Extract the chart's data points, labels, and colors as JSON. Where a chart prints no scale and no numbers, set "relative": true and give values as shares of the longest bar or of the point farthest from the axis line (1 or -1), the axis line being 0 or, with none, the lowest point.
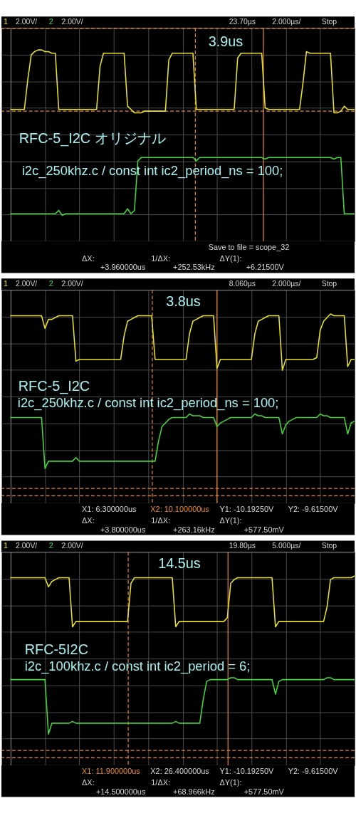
{
  "chart_data": [
    {
      "type": "line",
      "title": "RFC-5_I2C オリジナル",
      "subtitle": "i2c_250khz.c / const int ic2_period_ns = 100;",
      "relative": true,
      "categories": [
        null,
        null,
        null,
        null,
        null,
        null,
        null,
        null,
        null,
        null,
        null,
        null,
        null,
        null,
        null,
        null,
        null,
        null,
        null,
        null,
        null,
        null,
        null,
        null,
        null,
        null,
        null,
        null,
        null,
        null,
        null,
        null,
        null,
        null,
        null,
        null,
        null,
        null,
        null,
        null,
        null,
        null,
        null,
        null,
        null,
        null,
        null,
        null,
        null,
        null,
        null,
        null,
        null,
        null,
        null,
        null,
        null,
        null,
        null,
        null,
        null,
        null,
        null,
        null,
        null,
        null,
        null,
        null,
        null,
        null,
        null,
        null,
        null,
        null,
        null,
        null,
        null,
        null,
        null,
        null,
        null,
        null,
        null,
        null,
        null,
        null,
        null,
        null,
        null,
        null,
        null,
        null,
        null,
        null,
        null,
        null,
        null,
        null,
        null,
        null,
        null
      ],
      "tick_labels": false,
      "grid": true,
      "line_style": "solid",
      "series": [
        {
          "name": "1",
          "color": "#e6e02c",
          "values": [
            0.64,
            0.64,
            0.64,
            0.64,
            0.64,
            0.82,
            0.97,
            0.99,
            1.0,
            1.0,
            0.99,
            0.99,
            0.98,
            0.98,
            0.64,
            0.64,
            0.64,
            0.64,
            0.64,
            0.64,
            0.64,
            0.64,
            0.64,
            0.64,
            0.64,
            0.64,
            0.9,
            0.98,
            0.98,
            0.98,
            0.98,
            0.98,
            0.98,
            0.98,
            0.66,
            0.64,
            0.62,
            0.62,
            0.62,
            0.63,
            0.63,
            0.63,
            0.63,
            0.63,
            0.63,
            0.63,
            0.94,
            0.98,
            0.98,
            0.98,
            0.98,
            0.98,
            0.98,
            0.98,
            0.64,
            0.64,
            0.64,
            0.64,
            0.64,
            0.64,
            0.64,
            0.64,
            0.64,
            0.64,
            0.64,
            0.64,
            0.95,
            0.98,
            0.98,
            0.98,
            0.98,
            0.98,
            0.98,
            0.98,
            0.65,
            0.64,
            0.64,
            0.64,
            0.64,
            0.64,
            0.64,
            0.64,
            0.64,
            0.64,
            0.64,
            0.8,
            0.99,
            0.98,
            0.98,
            0.98,
            0.98,
            0.98,
            0.98,
            0.98,
            0.62,
            0.62,
            0.63,
            0.66,
            0.64,
            0.64,
            0.64
          ]
        },
        {
          "name": "2",
          "color": "#44d43a",
          "values": [
            0.01,
            0.01,
            0.01,
            0.01,
            0.01,
            0.01,
            0.01,
            0.01,
            0.01,
            0.01,
            0.01,
            0.01,
            0.01,
            0.01,
            0.03,
            0.0,
            0.01,
            0.01,
            0.01,
            0.01,
            0.01,
            0.01,
            0.01,
            0.01,
            0.01,
            0.01,
            0.01,
            0.01,
            0.01,
            0.01,
            0.01,
            0.01,
            0.01,
            0.01,
            0.04,
            0.01,
            0.03,
            0.33,
            0.35,
            0.35,
            0.35,
            0.35,
            0.35,
            0.35,
            0.35,
            0.35,
            0.35,
            0.35,
            0.35,
            0.35,
            0.35,
            0.35,
            0.35,
            0.35,
            0.33,
            0.35,
            0.35,
            0.35,
            0.35,
            0.35,
            0.35,
            0.35,
            0.35,
            0.35,
            0.35,
            0.35,
            0.35,
            0.35,
            0.35,
            0.35,
            0.35,
            0.35,
            0.35,
            0.35,
            0.34,
            0.35,
            0.35,
            0.35,
            0.35,
            0.35,
            0.35,
            0.35,
            0.35,
            0.35,
            0.35,
            0.35,
            0.35,
            0.35,
            0.35,
            0.35,
            0.35,
            0.35,
            0.35,
            0.35,
            0.34,
            0.35,
            0.35,
            0.01,
            0.01,
            0.01,
            0.01
          ]
        }
      ],
      "ref_lines": [
        {
          "axis": "y",
          "value": 0.63,
          "color": "#f0882a",
          "line_style": "dashed"
        },
        {
          "axis": "y",
          "value": 1.13,
          "color": "#f0882a",
          "line_style": "dashed"
        }
      ],
      "annotations": [
        "2.00V/",
        "2.00V/",
        "23.70µs",
        "2.000µs/",
        "Stop",
        "3.9us",
        "Save to file = scope_32",
        "ΔX:",
        "+3.960000us",
        "1/ΔX:",
        "+252.53kHz",
        "ΔY(1):",
        "+6.21500V"
      ]
    },
    {
      "type": "line",
      "title": "RFC-5_I2C",
      "subtitle": "i2c_250khz.c / const int ic2_period_ns = 100;",
      "relative": true,
      "categories": [
        null,
        null,
        null,
        null,
        null,
        null,
        null,
        null,
        null,
        null,
        null,
        null,
        null,
        null,
        null,
        null,
        null,
        null,
        null,
        null,
        null,
        null,
        null,
        null,
        null,
        null,
        null,
        null,
        null,
        null,
        null,
        null,
        null,
        null,
        null,
        null,
        null,
        null,
        null,
        null,
        null,
        null,
        null,
        null,
        null,
        null,
        null,
        null,
        null,
        null,
        null,
        null,
        null,
        null,
        null,
        null,
        null,
        null,
        null,
        null,
        null,
        null,
        null,
        null,
        null,
        null,
        null,
        null,
        null,
        null,
        null,
        null,
        null,
        null,
        null,
        null,
        null,
        null,
        null,
        null,
        null,
        null,
        null,
        null,
        null,
        null,
        null,
        null,
        null,
        null,
        null,
        null,
        null,
        null,
        null,
        null,
        null,
        null,
        null,
        null,
        null
      ],
      "tick_labels": false,
      "grid": true,
      "line_style": "solid",
      "series": [
        {
          "name": "1",
          "color": "#e6e02c",
          "values": [
            0.99,
            0.99,
            0.99,
            0.99,
            0.99,
            0.99,
            0.99,
            0.99,
            0.99,
            0.99,
            0.92,
            0.97,
            0.97,
            0.98,
            0.99,
            0.99,
            0.99,
            0.99,
            0.99,
            0.74,
            0.75,
            0.75,
            0.75,
            0.75,
            0.75,
            0.75,
            0.75,
            0.75,
            0.75,
            0.75,
            0.75,
            0.75,
            0.75,
            0.88,
            0.96,
            0.97,
            0.98,
            0.99,
            0.99,
            0.99,
            0.99,
            0.99,
            0.75,
            0.75,
            0.75,
            0.75,
            0.75,
            0.75,
            0.75,
            0.75,
            0.75,
            0.75,
            0.89,
            0.96,
            0.97,
            0.98,
            0.99,
            0.99,
            0.99,
            0.99,
            0.7,
            0.75,
            0.75,
            0.75,
            0.75,
            0.75,
            0.75,
            0.75,
            0.75,
            0.75,
            0.75,
            0.89,
            0.96,
            0.97,
            0.98,
            0.99,
            0.99,
            0.99,
            0.99,
            0.69,
            0.75,
            0.75,
            0.75,
            0.75,
            0.75,
            0.75,
            0.75,
            0.75,
            0.75,
            0.76,
            0.91,
            0.96,
            0.98,
            1.0,
            0.99,
            0.99,
            0.99,
            0.99,
            0.71,
            0.75,
            0.75
          ]
        },
        {
          "name": "2",
          "color": "#44d43a",
          "values": [
            0.43,
            0.43,
            0.43,
            0.43,
            0.43,
            0.43,
            0.43,
            0.43,
            0.43,
            0.43,
            0.15,
            0.19,
            0.19,
            0.19,
            0.19,
            0.19,
            0.19,
            0.19,
            0.19,
            0.21,
            0.19,
            0.19,
            0.19,
            0.19,
            0.19,
            0.19,
            0.19,
            0.19,
            0.19,
            0.19,
            0.19,
            0.19,
            0.19,
            0.19,
            0.19,
            0.19,
            0.19,
            0.19,
            0.19,
            0.19,
            0.19,
            0.19,
            0.19,
            0.3,
            0.38,
            0.4,
            0.42,
            0.43,
            0.43,
            0.43,
            0.43,
            0.43,
            0.45,
            0.44,
            0.44,
            0.44,
            0.43,
            0.43,
            0.43,
            0.43,
            0.38,
            0.4,
            0.41,
            0.42,
            0.43,
            0.43,
            0.43,
            0.43,
            0.43,
            0.43,
            0.43,
            0.45,
            0.44,
            0.44,
            0.43,
            0.43,
            0.43,
            0.43,
            0.43,
            0.34,
            0.39,
            0.41,
            0.42,
            0.43,
            0.43,
            0.43,
            0.43,
            0.43,
            0.43,
            0.43,
            0.45,
            0.44,
            0.44,
            0.43,
            0.43,
            0.43,
            0.43,
            0.43,
            0.34,
            0.4,
            0.41
          ]
        }
      ],
      "ref_lines": [
        {
          "axis": "y",
          "value": 0.04,
          "color": "#f0882a",
          "line_style": "dashed"
        },
        {
          "axis": "y",
          "value": 0.0,
          "color": "#f0882a",
          "line_style": "dashed"
        }
      ],
      "annotations": [
        "2.00V/",
        "2.00V/",
        "8.060µs",
        "2.000µs/",
        "Stop",
        "3.8us",
        "X1: 6.300000us",
        "X2: 10.100000us",
        "Y1: -10.19250V",
        "Y2: -9.61500V",
        "ΔX:",
        "+3.800000us",
        "1/ΔX:",
        "+263.16kHz",
        "ΔY(1):",
        "+577.50mV"
      ]
    },
    {
      "type": "line",
      "title": "RFC-5I2C",
      "subtitle": "i2c_100khz.c / const int ic2_period = 6;",
      "relative": true,
      "categories": [
        null,
        null,
        null,
        null,
        null,
        null,
        null,
        null,
        null,
        null,
        null,
        null,
        null,
        null,
        null,
        null,
        null,
        null,
        null,
        null,
        null,
        null,
        null,
        null,
        null,
        null,
        null,
        null,
        null,
        null,
        null,
        null,
        null,
        null,
        null,
        null,
        null,
        null,
        null,
        null,
        null,
        null,
        null,
        null,
        null,
        null,
        null,
        null,
        null,
        null,
        null,
        null,
        null,
        null,
        null,
        null,
        null,
        null,
        null,
        null,
        null,
        null,
        null,
        null,
        null,
        null,
        null,
        null,
        null,
        null,
        null,
        null,
        null,
        null,
        null,
        null,
        null,
        null,
        null,
        null,
        null,
        null,
        null,
        null,
        null,
        null,
        null,
        null,
        null,
        null,
        null,
        null,
        null,
        null,
        null,
        null,
        null,
        null,
        null,
        null,
        null
      ],
      "tick_labels": false,
      "grid": true,
      "line_style": "solid",
      "series": [
        {
          "name": "1",
          "color": "#e6e02c",
          "values": [
            0.99,
            0.99,
            0.99,
            0.99,
            0.99,
            0.99,
            0.99,
            0.99,
            0.99,
            0.99,
            0.99,
            0.94,
            0.97,
            0.98,
            0.99,
            0.99,
            0.99,
            0.99,
            0.72,
            0.75,
            0.75,
            0.75,
            0.75,
            0.75,
            0.75,
            0.75,
            0.75,
            0.75,
            0.75,
            0.75,
            0.75,
            0.75,
            0.75,
            0.75,
            0.75,
            0.96,
            0.99,
            0.99,
            0.99,
            0.99,
            0.99,
            0.99,
            0.99,
            0.99,
            0.99,
            0.99,
            0.99,
            0.99,
            0.72,
            0.75,
            0.75,
            0.75,
            0.75,
            0.75,
            0.75,
            0.75,
            0.75,
            0.75,
            0.75,
            0.75,
            0.75,
            0.75,
            0.75,
            0.77,
            0.96,
            0.98,
            0.99,
            0.99,
            0.99,
            0.99,
            0.99,
            0.99,
            0.99,
            0.99,
            0.99,
            0.99,
            0.99,
            0.72,
            0.75,
            0.75,
            0.75,
            0.75,
            0.75,
            0.75,
            0.75,
            0.75,
            0.75,
            0.75,
            0.75,
            0.75,
            0.75,
            0.75,
            0.83,
            0.98,
            0.99,
            0.99,
            0.99,
            0.99,
            0.99,
            0.99,
            1.0
          ]
        },
        {
          "name": "2",
          "color": "#44d43a",
          "values": [
            0.43,
            0.43,
            0.43,
            0.43,
            0.43,
            0.43,
            0.43,
            0.43,
            0.43,
            0.43,
            0.43,
            0.13,
            0.19,
            0.19,
            0.19,
            0.19,
            0.19,
            0.19,
            0.2,
            0.19,
            0.19,
            0.19,
            0.19,
            0.19,
            0.19,
            0.19,
            0.19,
            0.19,
            0.19,
            0.19,
            0.19,
            0.19,
            0.19,
            0.19,
            0.19,
            0.19,
            0.19,
            0.19,
            0.19,
            0.19,
            0.19,
            0.19,
            0.19,
            0.19,
            0.19,
            0.19,
            0.19,
            0.19,
            0.2,
            0.19,
            0.19,
            0.19,
            0.19,
            0.19,
            0.19,
            0.19,
            0.32,
            0.42,
            0.43,
            0.43,
            0.43,
            0.43,
            0.43,
            0.43,
            0.44,
            0.44,
            0.43,
            0.43,
            0.43,
            0.43,
            0.43,
            0.43,
            0.43,
            0.43,
            0.43,
            0.43,
            0.43,
            0.35,
            0.42,
            0.43,
            0.43,
            0.43,
            0.43,
            0.43,
            0.43,
            0.43,
            0.43,
            0.43,
            0.43,
            0.43,
            0.43,
            0.43,
            0.44,
            0.44,
            0.43,
            0.43,
            0.43,
            0.43,
            0.43,
            0.43,
            0.43
          ]
        }
      ],
      "ref_lines": [
        {
          "axis": "y",
          "value": 0.04,
          "color": "#f0882a",
          "line_style": "dashed"
        },
        {
          "axis": "y",
          "value": 0.0,
          "color": "#f0882a",
          "line_style": "dashed"
        }
      ],
      "annotations": [
        "2.00V/",
        "2.00V/",
        "19.80µs",
        "5.000µs/",
        "Stop",
        "14.5us",
        "X1: 11.900000us",
        "X2: 26.400000us",
        "Y1: -10.19250V",
        "Y2: -9.61500V",
        "ΔX:",
        "+14.500000us",
        "1/ΔX:",
        "+68.966kHz",
        "ΔY(1):",
        "+577.50mV"
      ]
    }
  ]
}
